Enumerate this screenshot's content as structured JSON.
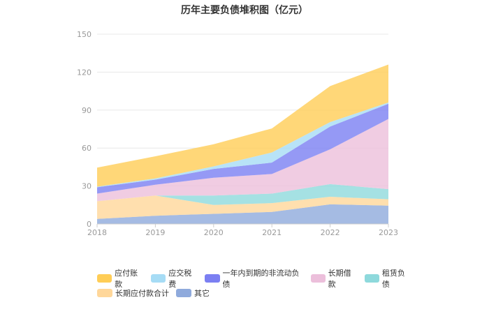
{
  "chart_data": {
    "type": "area",
    "stacked": true,
    "title": "历年主要负债堆积图（亿元）",
    "categories": [
      "2018",
      "2019",
      "2020",
      "2021",
      "2022",
      "2023"
    ],
    "ylim": [
      0,
      150
    ],
    "yticks": [
      0,
      30,
      60,
      90,
      120,
      150
    ],
    "grid": true,
    "legend_position": "bottom",
    "series": [
      {
        "name": "其它",
        "color": "#8faadc",
        "values": [
          4,
          6.5,
          8,
          9.5,
          15.5,
          14.5
        ]
      },
      {
        "name": "长期应付款合计",
        "color": "#ffd79a",
        "values": [
          14,
          16,
          7,
          7,
          6,
          5
        ]
      },
      {
        "name": "租赁负债",
        "color": "#8ed9dc",
        "values": [
          0,
          0,
          7.5,
          7.5,
          10,
          8
        ]
      },
      {
        "name": "长期借款",
        "color": "#ecbfdb",
        "values": [
          6,
          8.5,
          14,
          15.5,
          27.5,
          55.5
        ]
      },
      {
        "name": "一年内到期的非流动负债",
        "color": "#7b7ff2",
        "values": [
          5,
          4,
          7,
          9,
          18,
          12
        ]
      },
      {
        "name": "应交税费",
        "color": "#a6dcf5",
        "values": [
          0.5,
          1,
          2,
          8,
          3.5,
          1
        ]
      },
      {
        "name": "应付账款",
        "color": "#ffcd56",
        "values": [
          15,
          17.5,
          17.5,
          19,
          28.5,
          30
        ]
      }
    ],
    "legend_order": [
      "应付账款",
      "应交税费",
      "一年内到期的非流动负债",
      "长期借款",
      "租赁负债",
      "长期应付款合计",
      "其它"
    ]
  }
}
